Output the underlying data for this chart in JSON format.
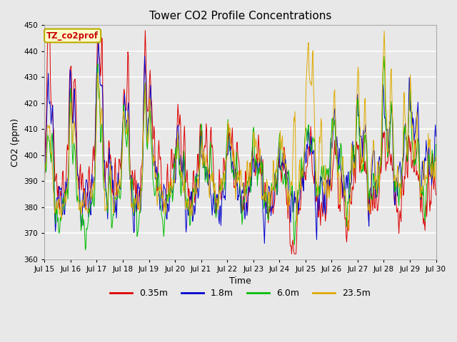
{
  "title": "Tower CO2 Profile Concentrations",
  "xlabel": "Time",
  "ylabel": "CO2 (ppm)",
  "ylim": [
    360,
    450
  ],
  "yticks": [
    360,
    370,
    380,
    390,
    400,
    410,
    420,
    430,
    440,
    450
  ],
  "annotation": "TZ_co2prof",
  "annotation_color": "#cc0000",
  "legend_labels": [
    "0.35m",
    "1.8m",
    "6.0m",
    "23.5m"
  ],
  "legend_colors": [
    "#dd0000",
    "#0000cc",
    "#00bb00",
    "#ddaa00"
  ],
  "line_colors": [
    "#dd0000",
    "#0000cc",
    "#00bb00",
    "#ddaa00"
  ],
  "background_color": "#e8e8e8",
  "plot_bg_color": "#e8e8e8",
  "grid_color": "#ffffff",
  "n_days": 15,
  "start_day": 15,
  "pts_per_day": 48,
  "seed": 7
}
